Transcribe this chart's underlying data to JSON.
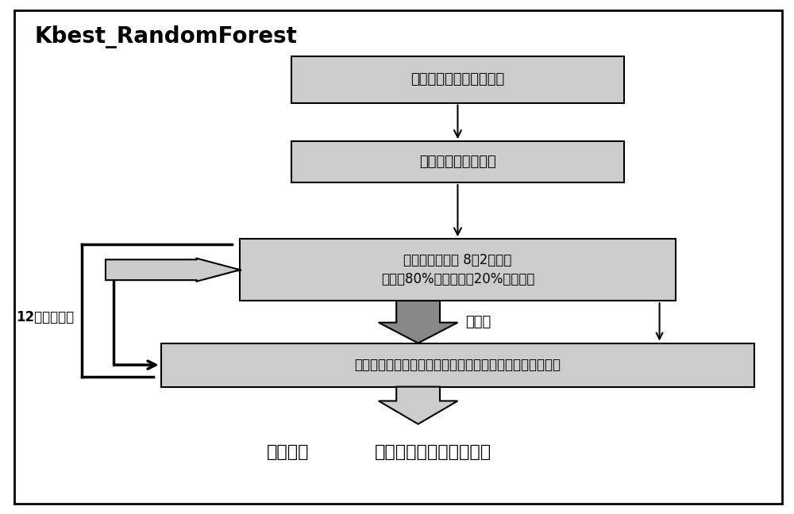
{
  "title": "Kbest_RandomForest",
  "background_color": "#ffffff",
  "box_fill": "#cccccc",
  "box_edge": "#000000",
  "box_texts": [
    "先把整体样本读到内存中",
    "特征降维和特征选择",
    "把整体样本按照 8：2的比例\n，分为80%的训练集，20%的测试集",
    "训练集的样本和标签统一的传入算法中，得到拟合后的模型"
  ],
  "arrow_label_train": "训练集",
  "cross_validation_label": "12倍交叉验证",
  "output_label_bold": "导出模型",
  "output_label_normal": "（在测试集上最终验证）"
}
